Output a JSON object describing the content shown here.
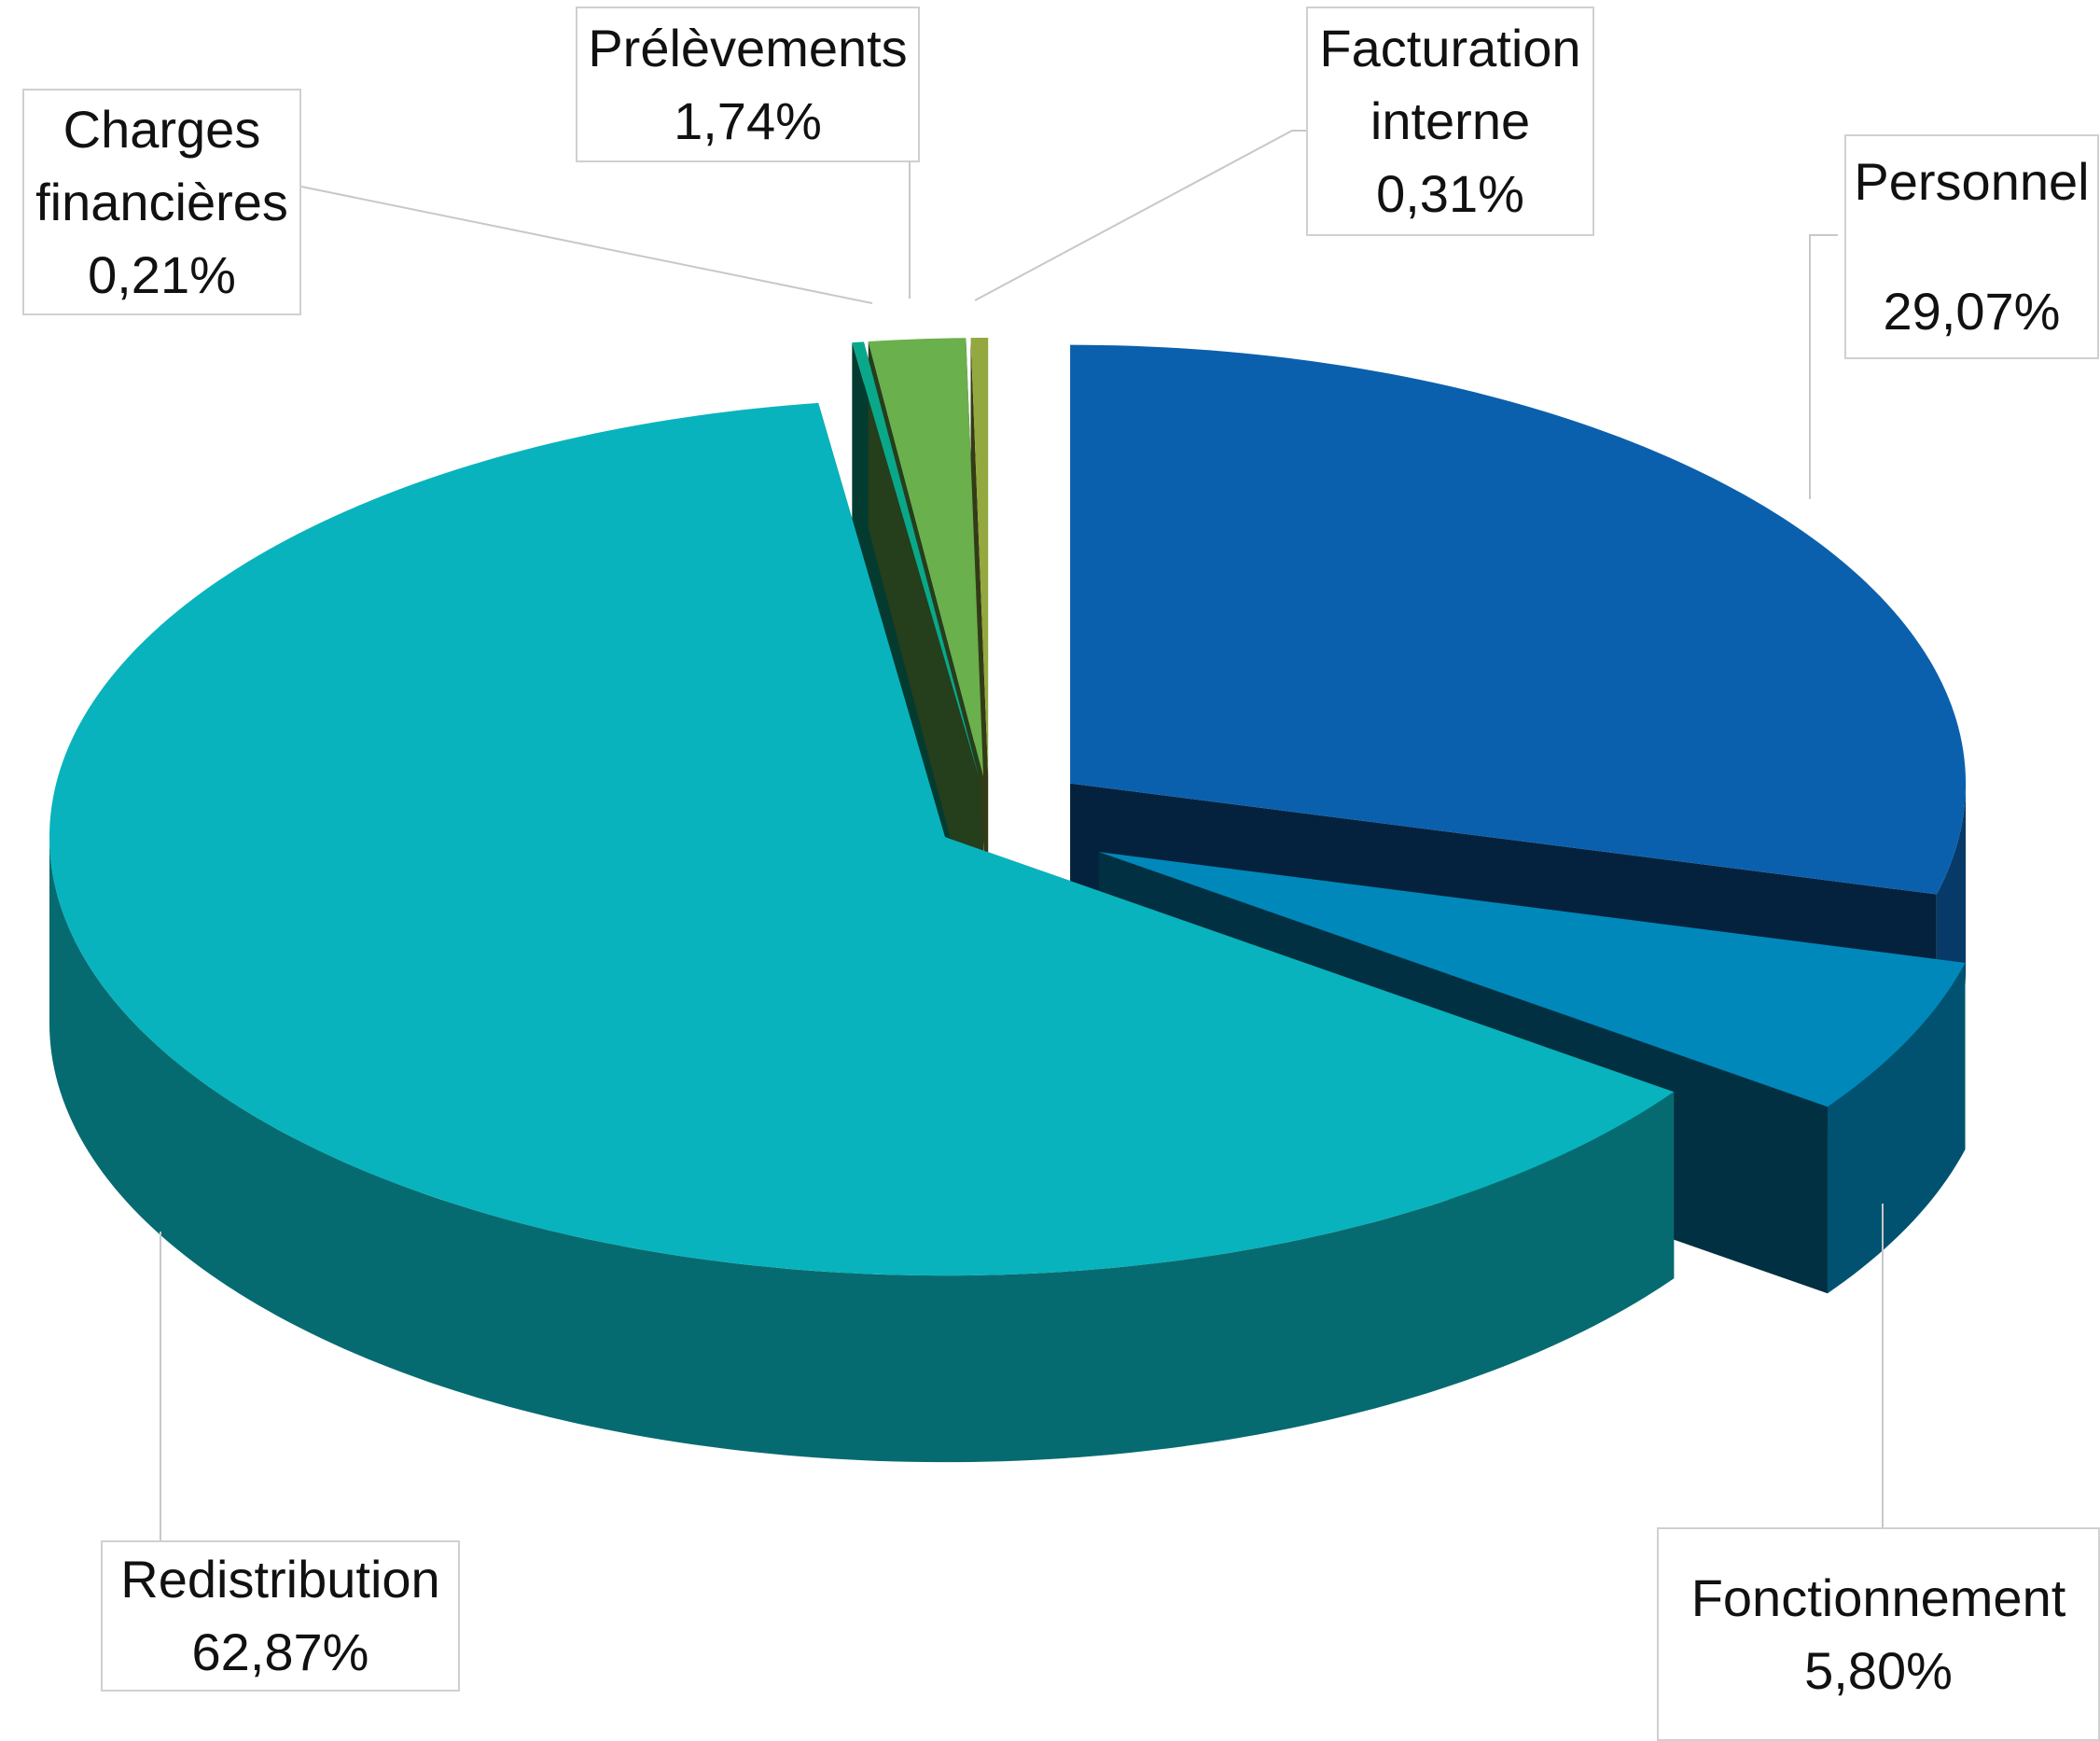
{
  "chart_data": {
    "type": "pie3d",
    "categories": [
      "Personnel",
      "Fonctionnement",
      "Redistribution",
      "Charges financières",
      "Prélèvements",
      "Facturation interne"
    ],
    "values": [
      29.07,
      5.8,
      62.87,
      0.21,
      1.74,
      0.31
    ],
    "value_labels": [
      "29,07%",
      "5,80%",
      "62,87%",
      "0,21%",
      "1,74%",
      "0,31%"
    ],
    "colors": [
      "#0b60ad",
      "#0088bb",
      "#08b3bd",
      "#0aa88a",
      "#6ab04c",
      "#93a83e"
    ]
  }
}
